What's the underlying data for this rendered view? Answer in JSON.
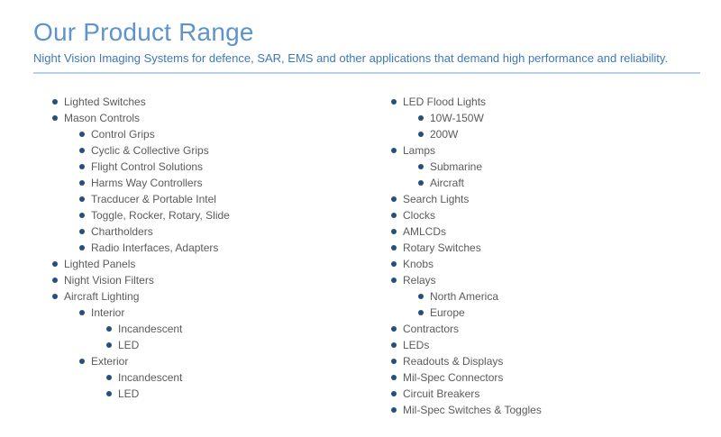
{
  "header": {
    "title": "Our Product Range",
    "subtitle": "Night Vision Imaging Systems for defence, SAR, EMS and other applications that demand high performance and reliability."
  },
  "colors": {
    "title_blue": "#5d94cb",
    "subtitle_blue": "#3e79b7",
    "bullet_navy": "#264f7e",
    "item_gray": "#5b5b5b",
    "divider_blue": "#b8cfe6"
  },
  "columns": [
    {
      "name": "left",
      "items": [
        {
          "level": 1,
          "label": "Lighted Switches"
        },
        {
          "level": 1,
          "label": "Mason Controls"
        },
        {
          "level": 2,
          "label": "Control Grips"
        },
        {
          "level": 2,
          "label": "Cyclic & Collective Grips"
        },
        {
          "level": 2,
          "label": "Flight Control Solutions"
        },
        {
          "level": 2,
          "label": "Harms Way Controllers"
        },
        {
          "level": 2,
          "label": "Tracducer & Portable Intel"
        },
        {
          "level": 2,
          "label": "Toggle, Rocker, Rotary, Slide"
        },
        {
          "level": 2,
          "label": "Chartholders"
        },
        {
          "level": 2,
          "label": "Radio Interfaces, Adapters"
        },
        {
          "level": 1,
          "label": "Lighted Panels"
        },
        {
          "level": 1,
          "label": "Night Vision Filters"
        },
        {
          "level": 1,
          "label": "Aircraft Lighting"
        },
        {
          "level": 2,
          "label": "Interior"
        },
        {
          "level": 3,
          "label": "Incandescent"
        },
        {
          "level": 3,
          "label": "LED"
        },
        {
          "level": 2,
          "label": "Exterior"
        },
        {
          "level": 3,
          "label": "Incandescent"
        },
        {
          "level": 3,
          "label": "LED"
        }
      ]
    },
    {
      "name": "right",
      "items": [
        {
          "level": 1,
          "label": "LED Flood Lights"
        },
        {
          "level": 2,
          "label": "10W-150W"
        },
        {
          "level": 2,
          "label": "200W"
        },
        {
          "level": 1,
          "label": "Lamps"
        },
        {
          "level": 2,
          "label": "Submarine"
        },
        {
          "level": 2,
          "label": "Aircraft"
        },
        {
          "level": 1,
          "label": "Search Lights"
        },
        {
          "level": 1,
          "label": "Clocks"
        },
        {
          "level": 1,
          "label": "AMLCDs"
        },
        {
          "level": 1,
          "label": "Rotary Switches"
        },
        {
          "level": 1,
          "label": "Knobs"
        },
        {
          "level": 1,
          "label": "Relays"
        },
        {
          "level": 2,
          "label": "North America"
        },
        {
          "level": 2,
          "label": "Europe"
        },
        {
          "level": 1,
          "label": "Contractors"
        },
        {
          "level": 1,
          "label": "LEDs"
        },
        {
          "level": 1,
          "label": "Readouts & Displays"
        },
        {
          "level": 1,
          "label": "Mil-Spec Connectors"
        },
        {
          "level": 1,
          "label": "Circuit Breakers"
        },
        {
          "level": 1,
          "label": "Mil-Spec Switches & Toggles"
        }
      ]
    }
  ]
}
